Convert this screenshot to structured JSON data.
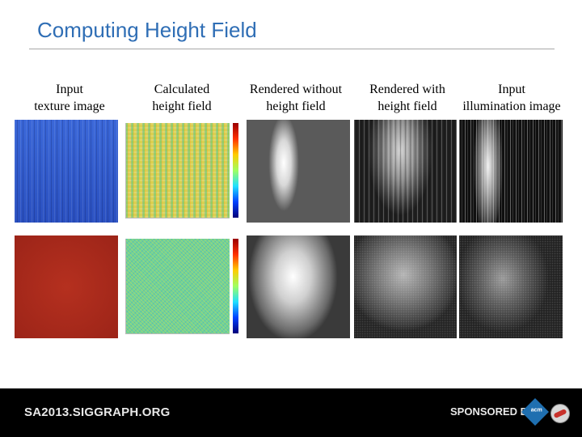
{
  "slide": {
    "title": "Computing Height Field"
  },
  "columns": [
    {
      "line1": "Input",
      "line2": "texture image"
    },
    {
      "line1": "Calculated",
      "line2": "height field"
    },
    {
      "line1": "Rendered without",
      "line2": "height field"
    },
    {
      "line1": "Rendered with",
      "line2": "height field"
    },
    {
      "line1": "Input",
      "line2": "illumination image"
    }
  ],
  "footer": {
    "site": "SA2013.SIGGRAPH.ORG",
    "sponsored": "SPONSORED BY",
    "acm": "acm"
  }
}
